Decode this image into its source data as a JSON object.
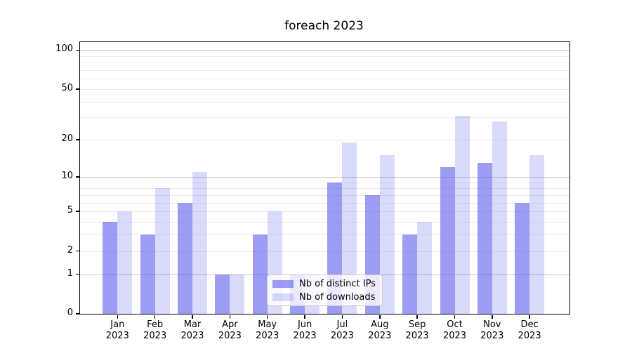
{
  "chart_data": {
    "type": "bar",
    "title": "foreach 2023",
    "categories": [
      "Jan 2023",
      "Feb 2023",
      "Mar 2023",
      "Apr 2023",
      "May 2023",
      "Jun 2023",
      "Jul 2023",
      "Aug 2023",
      "Sep 2023",
      "Oct 2023",
      "Nov 2023",
      "Dec 2023"
    ],
    "series": [
      {
        "key": "distinct-ips",
        "name": "Nb of distinct IPs",
        "values": [
          4,
          3,
          6,
          1,
          3,
          1,
          9,
          7,
          3,
          12,
          13,
          6
        ],
        "color": "rgba(97, 95, 235, 0.62)"
      },
      {
        "key": "downloads",
        "name": "Nb of downloads",
        "values": [
          5,
          8,
          11,
          1,
          5,
          1,
          19,
          15,
          4,
          31,
          28,
          15
        ],
        "color": "rgba(97, 95, 235, 0.23)"
      }
    ],
    "xlabel": "",
    "ylabel": "",
    "yscale": "log1p",
    "ylim": [
      0,
      115
    ],
    "yticks": [
      100,
      50,
      20,
      10,
      5,
      2,
      1,
      0
    ],
    "y_major_gridlines": [
      1,
      10,
      100
    ],
    "y_minor_gridlines": [
      2,
      3,
      4,
      5,
      6,
      7,
      8,
      9,
      20,
      30,
      40,
      50,
      60,
      70,
      80,
      90
    ],
    "grid": true,
    "legend_position": "lower center",
    "colors": {
      "background": "#ffffff",
      "major_grid": "#c6c6c6",
      "minor_grid": "#ececec",
      "axis": "#000000",
      "text": "#000000",
      "bar_distinct_ips": "rgba(97, 95, 235, 0.62)",
      "bar_downloads": "rgba(97, 95, 235, 0.23)"
    }
  }
}
